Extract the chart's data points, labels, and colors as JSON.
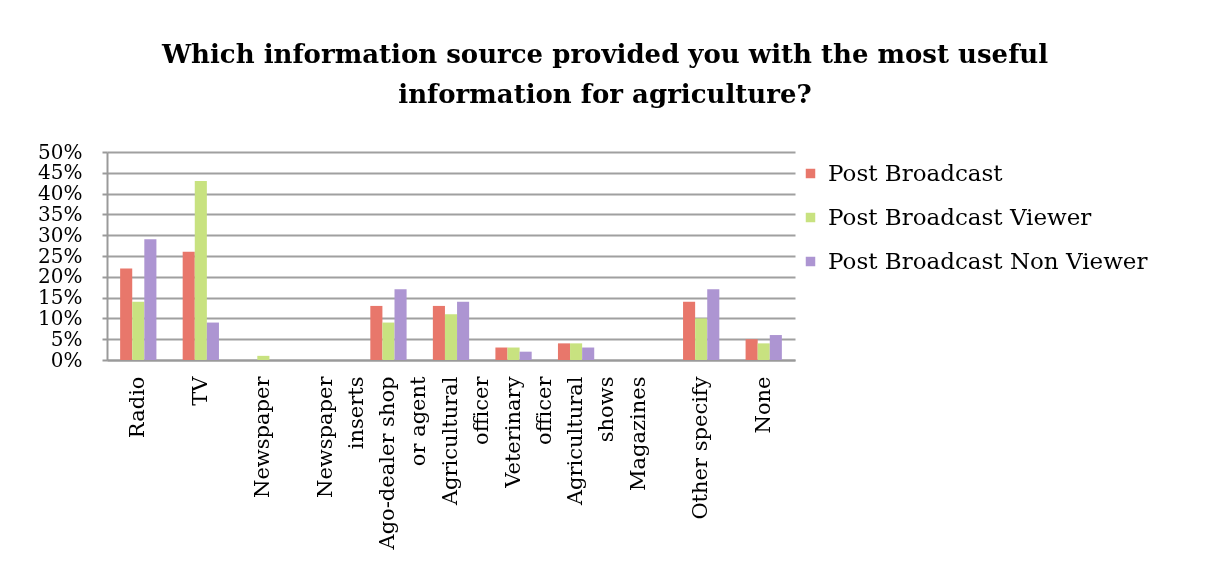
{
  "chart_data": {
    "type": "bar",
    "title": "Which information source provided you with the most useful information for agriculture?",
    "categories": [
      "Radio",
      "TV",
      "Newspaper",
      "Newspaper inserts",
      "Ago-dealer shop or agent",
      "Agricultural officer",
      "Veterinary officer",
      "Agricultural shows",
      "Magazines",
      "Other specify",
      "None"
    ],
    "series": [
      {
        "name": "Post Broadcast",
        "color": "#e8776b",
        "values": [
          22,
          26,
          0,
          0,
          13,
          13,
          3,
          4,
          0,
          14,
          5
        ]
      },
      {
        "name": "Post Broadcast Viewer",
        "color": "#c8e280",
        "values": [
          14,
          43,
          1,
          0,
          9,
          11,
          3,
          4,
          0,
          10,
          4
        ]
      },
      {
        "name": "Post Broadcast Non Viewer",
        "color": "#ad95d2",
        "values": [
          29,
          9,
          0,
          0,
          17,
          14,
          2,
          3,
          0,
          17,
          6
        ]
      }
    ],
    "ylim": [
      0,
      50
    ],
    "yticks": [
      {
        "value": 0,
        "label": "0%"
      },
      {
        "value": 5,
        "label": "5%"
      },
      {
        "value": 10,
        "label": "10%"
      },
      {
        "value": 15,
        "label": "15%"
      },
      {
        "value": 20,
        "label": "20%"
      },
      {
        "value": 25,
        "label": "25%"
      },
      {
        "value": 30,
        "label": "30%"
      },
      {
        "value": 35,
        "label": "35%"
      },
      {
        "value": 40,
        "label": "40%"
      },
      {
        "value": 45,
        "label": "45%"
      },
      {
        "value": 50,
        "label": "50%"
      }
    ],
    "grid": "y",
    "legend": "right"
  }
}
